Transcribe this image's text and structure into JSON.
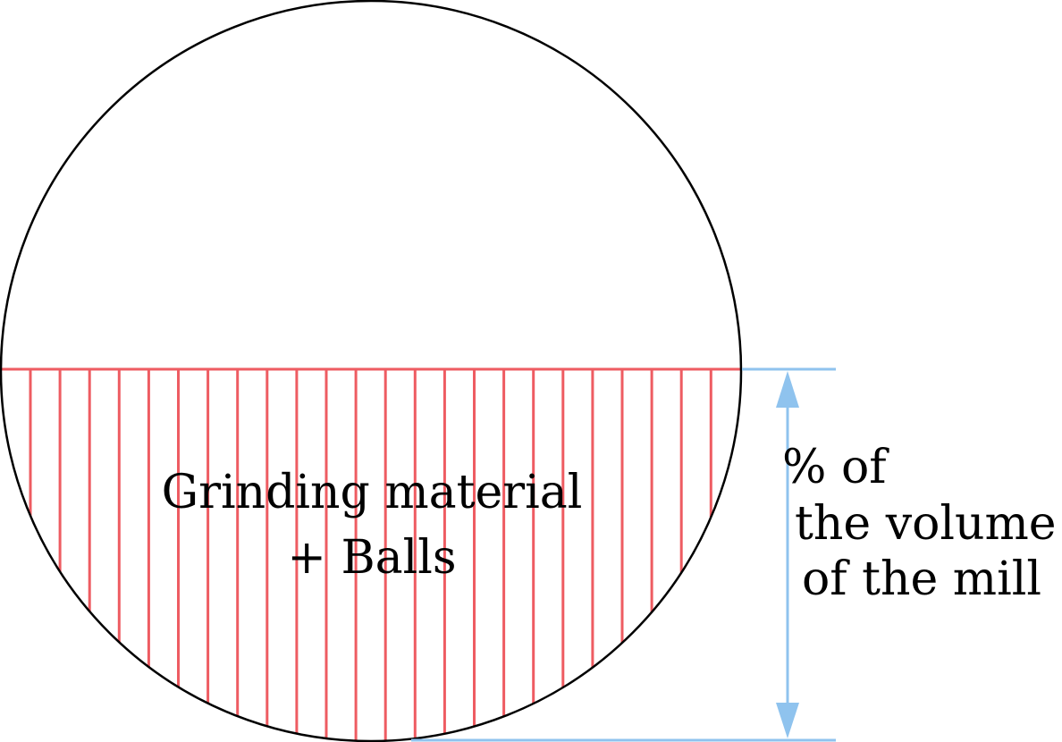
{
  "diagram": {
    "fill_label_line1": "Grinding material",
    "fill_label_line2": "+ Balls",
    "dimension_label_line1": "% of",
    "dimension_label_line2": "the volume",
    "dimension_label_line3": "of the mill"
  },
  "colors": {
    "outline": "#000000",
    "hatch": "#ee5c62",
    "dimension": "#8fc3ee"
  },
  "hatch_line_count": 24
}
